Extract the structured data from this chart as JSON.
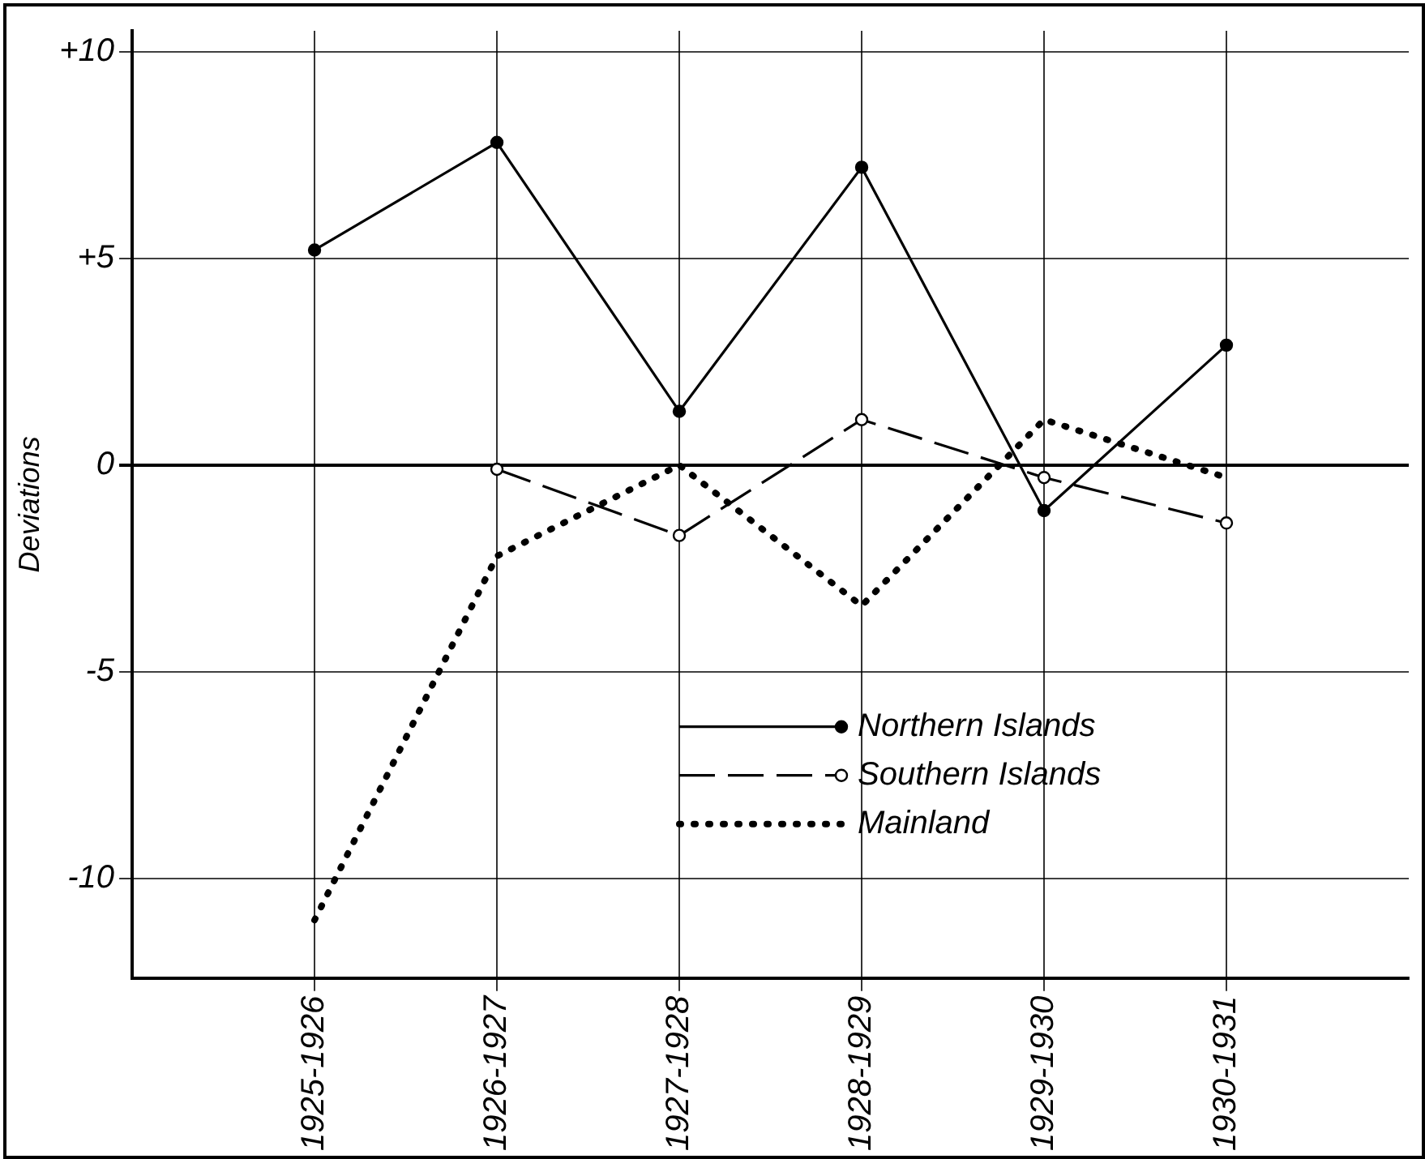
{
  "chart_data": {
    "type": "line",
    "ylabel": "Deviations",
    "categories": [
      "1925-1926",
      "1926-1927",
      "1927-1928",
      "1928-1929",
      "1929-1930",
      "1930-1931"
    ],
    "series": [
      {
        "name": "Northern Islands",
        "color": "#000000",
        "values": [
          5.2,
          7.8,
          1.3,
          7.2,
          -1.1,
          2.9
        ],
        "line_style": "solid",
        "marker": "circle"
      },
      {
        "name": "Southern Islands",
        "color": "#000000",
        "values": [
          null,
          -0.1,
          -1.7,
          1.1,
          -0.3,
          -1.4
        ],
        "line_style": "dashed",
        "marker": "circle"
      },
      {
        "name": "Mainland",
        "color": "#000000",
        "values": [
          -11,
          -2.2,
          0,
          -3.4,
          1.1,
          -0.3
        ],
        "line_style": "dotted",
        "marker": "none"
      }
    ],
    "ylim": [
      -12.4,
      10.5
    ],
    "yticks": [
      {
        "value": 10,
        "label": "+10"
      },
      {
        "value": 5,
        "label": "+5"
      },
      0,
      -5,
      -10
    ],
    "grid": true,
    "legend": "bottom right"
  }
}
